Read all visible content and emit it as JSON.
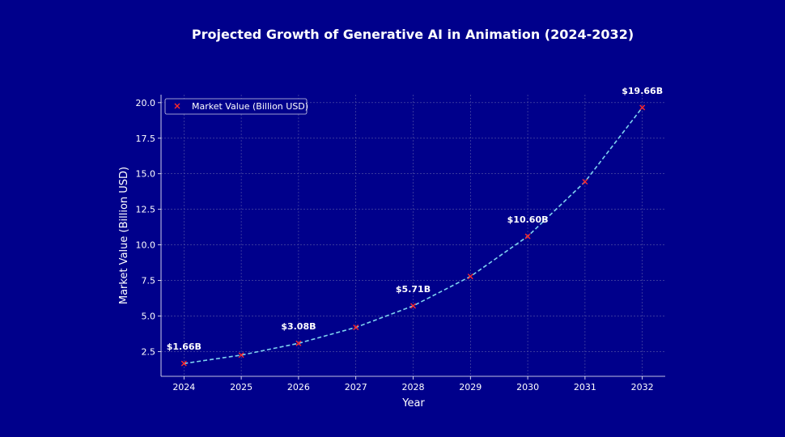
{
  "chart_data": {
    "type": "line",
    "title": "Projected Growth of Generative AI in Animation (2024-2032)",
    "xlabel": "Year",
    "ylabel": "Market Value (Billion USD)",
    "x": [
      2024,
      2025,
      2026,
      2027,
      2028,
      2029,
      2030,
      2031,
      2032
    ],
    "series": [
      {
        "name": "Market Value (Billion USD)",
        "values": [
          1.66,
          2.25,
          3.08,
          4.2,
          5.71,
          7.78,
          10.6,
          14.44,
          19.66
        ],
        "line_color": "#7fd4f0",
        "marker_color": "#ff2a2a",
        "marker": "x"
      }
    ],
    "xticks": [
      "2024",
      "2025",
      "2026",
      "2027",
      "2028",
      "2029",
      "2030",
      "2031",
      "2032"
    ],
    "yticks": [
      "2.5",
      "5.0",
      "7.5",
      "10.0",
      "12.5",
      "15.0",
      "17.5",
      "20.0"
    ],
    "ytick_values": [
      2.5,
      5.0,
      7.5,
      10.0,
      12.5,
      15.0,
      17.5,
      20.0
    ],
    "ylim": [
      0.76,
      20.56
    ],
    "xlim": [
      2023.6,
      2032.4
    ],
    "annotations": [
      {
        "x": 2024,
        "y": 1.66,
        "text": "$1.66B"
      },
      {
        "x": 2026,
        "y": 3.08,
        "text": "$3.08B"
      },
      {
        "x": 2028,
        "y": 5.71,
        "text": "$5.71B"
      },
      {
        "x": 2030,
        "y": 10.6,
        "text": "$10.60B"
      },
      {
        "x": 2032,
        "y": 19.66,
        "text": "$19.66B"
      }
    ],
    "grid": true,
    "legend_position": "top-left",
    "background_color": "#00008b"
  }
}
